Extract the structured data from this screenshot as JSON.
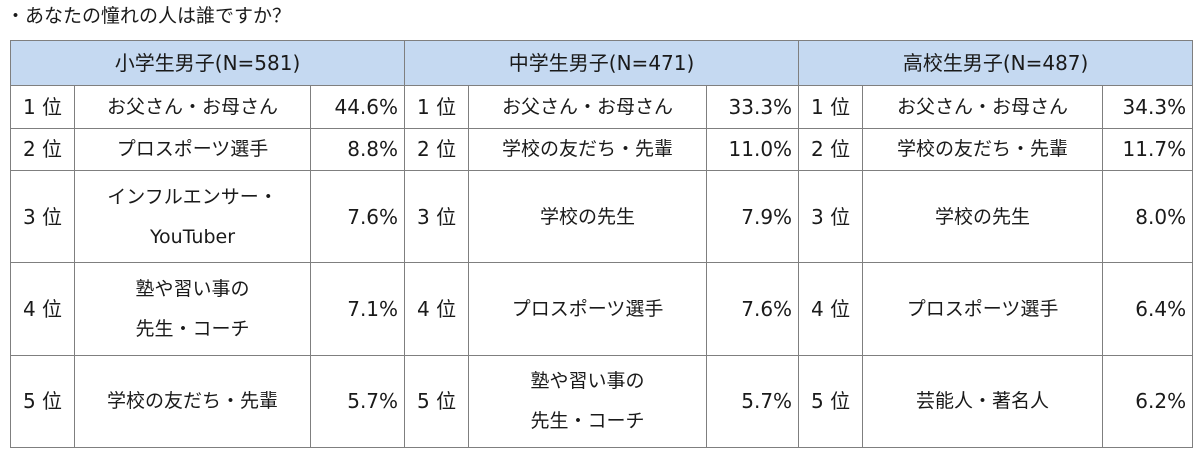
{
  "title": "・あなたの憧れの人は誰ですか？",
  "groups": [
    {
      "header": "小学生男子(N=581)",
      "rows": [
        {
          "rank": "1 位",
          "name": [
            "お父さん・お母さん"
          ],
          "pct": "44.6%"
        },
        {
          "rank": "2 位",
          "name": [
            "プロスポーツ選手"
          ],
          "pct": "8.8%"
        },
        {
          "rank": "3 位",
          "name": [
            "インフルエンサー・",
            "YouTuber"
          ],
          "pct": "7.6%"
        },
        {
          "rank": "4 位",
          "name": [
            "塾や習い事の",
            "先生・コーチ"
          ],
          "pct": "7.1%"
        },
        {
          "rank": "5 位",
          "name": [
            "学校の友だち・先輩"
          ],
          "pct": "5.7%"
        }
      ]
    },
    {
      "header": "中学生男子(N=471)",
      "rows": [
        {
          "rank": "1 位",
          "name": [
            "お父さん・お母さん"
          ],
          "pct": "33.3%"
        },
        {
          "rank": "2 位",
          "name": [
            "学校の友だち・先輩"
          ],
          "pct": "11.0%"
        },
        {
          "rank": "3 位",
          "name": [
            "学校の先生"
          ],
          "pct": "7.9%"
        },
        {
          "rank": "4 位",
          "name": [
            "プロスポーツ選手"
          ],
          "pct": "7.6%"
        },
        {
          "rank": "5 位",
          "name": [
            "塾や習い事の",
            "先生・コーチ"
          ],
          "pct": "5.7%"
        }
      ]
    },
    {
      "header": "高校生男子(N=487)",
      "rows": [
        {
          "rank": "1 位",
          "name": [
            "お父さん・お母さん"
          ],
          "pct": "34.3%"
        },
        {
          "rank": "2 位",
          "name": [
            "学校の友だち・先輩"
          ],
          "pct": "11.7%"
        },
        {
          "rank": "3 位",
          "name": [
            "学校の先生"
          ],
          "pct": "8.0%"
        },
        {
          "rank": "4 位",
          "name": [
            "プロスポーツ選手"
          ],
          "pct": "6.4%"
        },
        {
          "rank": "5 位",
          "name": [
            "芸能人・著名人"
          ],
          "pct": "6.2%"
        }
      ]
    }
  ]
}
